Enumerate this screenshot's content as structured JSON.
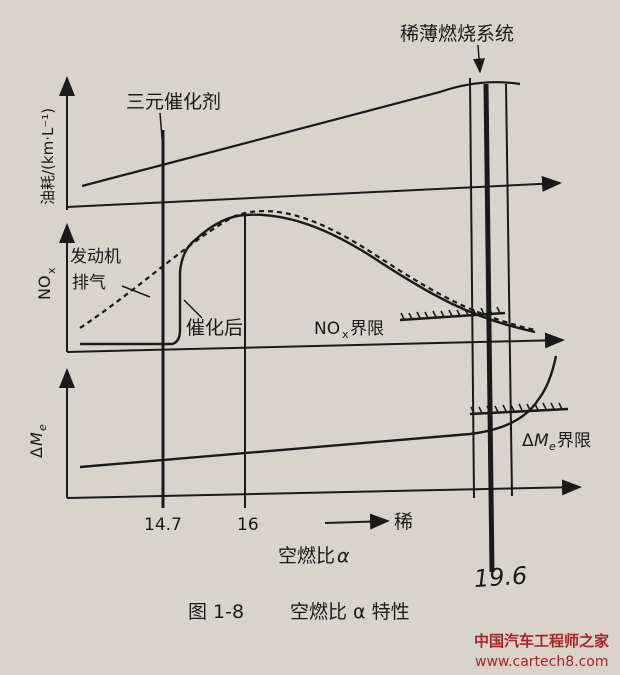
{
  "labels": {
    "lean_burn_system": "稀薄燃烧系统",
    "three_way_catalyst": "三元催化剂",
    "fuel_axis": "油耗/(km·L⁻¹)",
    "nox_axis_base": "NO",
    "nox_axis_sub": "x",
    "engine_exhaust_line1": "发动机",
    "engine_exhaust_line2": "排气",
    "after_catalyst": "催化后",
    "nox_limit_base": "NO",
    "nox_limit_sub": "x",
    "nox_limit_suffix": "界限",
    "dme_axis_prefix": "Δ",
    "dme_axis_italic": "M",
    "dme_axis_sub": "e",
    "dme_limit_prefix": "Δ",
    "dme_limit_italic": "M",
    "dme_limit_sub": "e",
    "dme_limit_suffix": "界限",
    "tick_14_7": "14.7",
    "tick_16": "16",
    "lean_arrow_label": "稀",
    "x_axis_text": "空燃比",
    "x_axis_symbol": "α",
    "handwritten_value": "19.6",
    "caption_prefix": "图 1-8",
    "caption_text": "空燃比 α 特性",
    "watermark_cn": "中国汽车工程师之家",
    "watermark_url": "www.cartech8.com"
  },
  "colors": {
    "ink": "#1a1a1a",
    "paper": "#d8d4cc",
    "watermark": "#b22222"
  }
}
